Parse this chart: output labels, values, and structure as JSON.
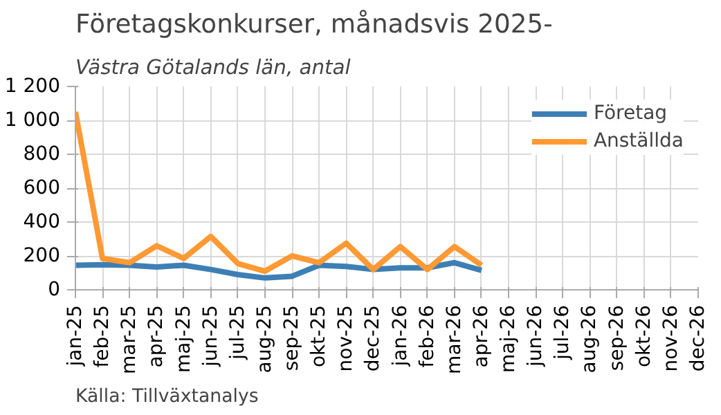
{
  "chart_data": {
    "type": "line",
    "title": "Företagskonkurser, månadsvis 2025-",
    "subtitle": "Västra Götalands län, antal",
    "categories": [
      "jan-25",
      "feb-25",
      "mar-25",
      "apr-25",
      "maj-25",
      "jun-25",
      "jul-25",
      "aug-25",
      "sep-25",
      "okt-25",
      "nov-25",
      "dec-25",
      "jan-26",
      "feb-26",
      "mar-26",
      "apr-26",
      "maj-26",
      "jun-26",
      "jul-26",
      "aug-26",
      "sep-26",
      "okt-26",
      "nov-26",
      "dec-26"
    ],
    "series": [
      {
        "name": "Företag",
        "color": "#3d7fb5",
        "values": [
          145,
          148,
          145,
          135,
          145,
          120,
          90,
          70,
          80,
          145,
          138,
          120,
          130,
          130,
          160,
          115,
          null,
          null,
          null,
          null,
          null,
          null,
          null,
          null
        ]
      },
      {
        "name": "Anställda",
        "color": "#ff9933",
        "values": [
          1050,
          185,
          160,
          260,
          185,
          315,
          155,
          110,
          200,
          160,
          275,
          120,
          255,
          120,
          255,
          145,
          null,
          null,
          null,
          null,
          null,
          null,
          null,
          null
        ]
      }
    ],
    "ylim": [
      0,
      1200
    ],
    "yticks": [
      0,
      200,
      400,
      600,
      800,
      {
        "value": 1000,
        "label": "1 000"
      },
      {
        "value": 1200,
        "label": "1 200"
      }
    ],
    "grid": true,
    "legend": "top right",
    "line_style": "solid",
    "marker": "none",
    "annotations": [
      "Källa: Tillväxtanalys"
    ]
  }
}
